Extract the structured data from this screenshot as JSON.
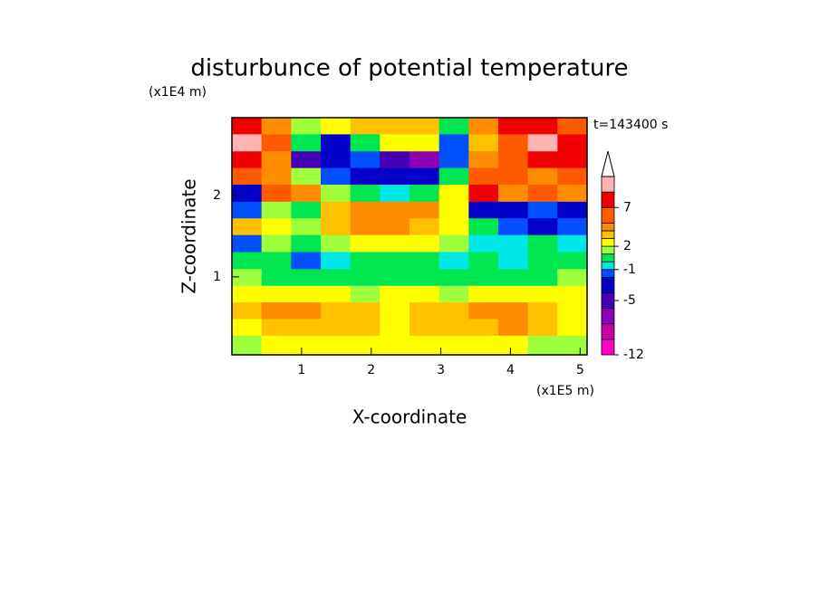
{
  "chart_data": {
    "type": "contour",
    "title": "disturbunce of potential temperature",
    "x_label": "X-coordinate",
    "y_label": "Z-coordinate",
    "x_unit": "(x1E5 m)",
    "y_unit": "(x1E4 m)",
    "annotation": "t=143400 s",
    "xlim": [
      0,
      5.1
    ],
    "ylim": [
      0.04,
      2.96
    ],
    "xticks": [
      1,
      2,
      3,
      4,
      5
    ],
    "yticks": [
      1,
      2
    ],
    "x": [
      0.21,
      0.64,
      1.06,
      1.49,
      1.91,
      2.34,
      2.76,
      3.19,
      3.61,
      4.04,
      4.46,
      4.89
    ],
    "y": [
      2.86,
      2.65,
      2.44,
      2.24,
      2.03,
      1.82,
      1.62,
      1.41,
      1.2,
      0.99,
      0.79,
      0.58,
      0.38,
      0.17
    ],
    "z": [
      [
        8,
        4.5,
        1.5,
        2.5,
        3.5,
        3.5,
        3.5,
        0.5,
        4.5,
        8,
        8,
        6
      ],
      [
        10,
        6,
        0.5,
        -3,
        0.5,
        2.5,
        2.5,
        -1.5,
        3.5,
        6,
        10,
        8
      ],
      [
        8,
        4.5,
        -5,
        -3,
        -1.5,
        -5,
        -7,
        -1.5,
        4.5,
        6,
        8,
        8
      ],
      [
        6,
        4.5,
        1.5,
        -1.5,
        -3,
        -3,
        -3,
        0.5,
        6,
        6,
        4.5,
        6
      ],
      [
        -3,
        6,
        4.5,
        1.5,
        0.5,
        -0.5,
        0.5,
        2.5,
        8,
        4.5,
        6,
        4.5
      ],
      [
        -1.5,
        1.5,
        0.5,
        3.5,
        4.5,
        4.5,
        4.5,
        2.5,
        -3,
        -3,
        -1.5,
        -3
      ],
      [
        3.5,
        2.5,
        1.5,
        3.5,
        4.5,
        4.5,
        3.5,
        2.5,
        0.5,
        -1.5,
        -3,
        -1.5
      ],
      [
        -1.5,
        1.5,
        0.5,
        1.5,
        2.5,
        2.5,
        2.5,
        1.5,
        -0.5,
        -0.5,
        0.5,
        -0.5
      ],
      [
        0.5,
        0.5,
        -1.5,
        -0.5,
        0.5,
        0.5,
        0.5,
        -0.5,
        0.5,
        -0.5,
        0.5,
        0.5
      ],
      [
        1.5,
        0.5,
        0.5,
        0.5,
        0.5,
        0.5,
        0.5,
        0.5,
        0.5,
        0.5,
        0.5,
        1.5
      ],
      [
        2.5,
        2.5,
        2.5,
        2.5,
        1.5,
        2.5,
        2.5,
        1.5,
        2.5,
        2.5,
        2.5,
        2.5
      ],
      [
        3.5,
        4.5,
        4.5,
        3.5,
        3.5,
        2.5,
        3.5,
        3.5,
        4.5,
        4.5,
        3.5,
        2.5
      ],
      [
        2.5,
        3.5,
        3.5,
        3.5,
        3.5,
        2.5,
        3.5,
        3.5,
        3.5,
        4.5,
        3.5,
        2.5
      ],
      [
        1.5,
        2.5,
        2.5,
        2.5,
        2.5,
        2.5,
        2.5,
        2.5,
        2.5,
        2.5,
        1.5,
        1.5
      ]
    ],
    "colorbar": {
      "lim": [
        -12,
        11
      ],
      "ticks": [
        -12,
        -5,
        -1,
        2,
        7
      ],
      "boundaries": [
        -12,
        -10,
        -8,
        -6,
        -4,
        -2,
        -1,
        0,
        1,
        2,
        3,
        4,
        5,
        7,
        9,
        11
      ],
      "colors": [
        "#ff00c8",
        "#c800a8",
        "#8c00b4",
        "#4600b4",
        "#0000c8",
        "#0050ff",
        "#00e6e6",
        "#00e650",
        "#a0ff3c",
        "#ffff00",
        "#ffc000",
        "#ff8c00",
        "#ff5a00",
        "#f00000",
        "#ffb4b4"
      ],
      "extend_color": "#ffffff"
    }
  }
}
